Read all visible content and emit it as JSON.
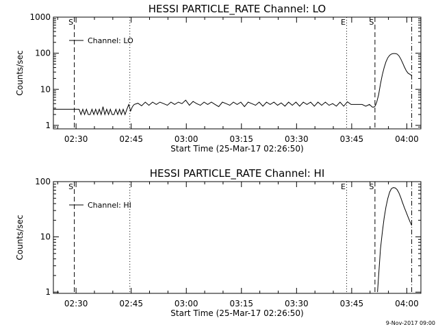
{
  "footer": {
    "date_stamp": "9-Nov-2017 09:00"
  },
  "chart_data": [
    {
      "type": "line",
      "title": "HESSI PARTICLE_RATE Channel: LO",
      "xlabel": "Start Time (25-Mar-17 02:26:50)",
      "ylabel": "Counts/sec",
      "yscale": "log",
      "xlim_min": [
        -3.0,
        97.0
      ],
      "ylim": [
        0.8,
        1000
      ],
      "x_ticks": [
        {
          "min": 3.17,
          "label": "02:30"
        },
        {
          "min": 18.17,
          "label": "02:45"
        },
        {
          "min": 33.17,
          "label": "03:00"
        },
        {
          "min": 48.17,
          "label": "03:15"
        },
        {
          "min": 63.17,
          "label": "03:30"
        },
        {
          "min": 78.17,
          "label": "03:45"
        },
        {
          "min": 93.17,
          "label": "04:00"
        }
      ],
      "y_ticks": [
        {
          "v": 1,
          "label": "1"
        },
        {
          "v": 10,
          "label": "10"
        },
        {
          "v": 100,
          "label": "100"
        },
        {
          "v": 1000,
          "label": "1000"
        }
      ],
      "legend": {
        "label": "Channel: LO",
        "position": "top-left"
      },
      "markers": [
        {
          "min": 2.7,
          "style": "dashed",
          "label": "S"
        },
        {
          "min": 17.8,
          "style": "dotted",
          "label": ""
        },
        {
          "min": 76.8,
          "style": "dotted",
          "label": "E"
        },
        {
          "min": 84.5,
          "style": "dashed",
          "label": "S"
        },
        {
          "min": 94.5,
          "style": "dashdot",
          "label": ""
        }
      ],
      "series": [
        {
          "name": "Channel: LO",
          "x": [
            -3.0,
            4.0,
            4.5,
            5.0,
            5.5,
            6.0,
            6.5,
            7.0,
            7.5,
            8.0,
            8.5,
            9.0,
            9.5,
            10.0,
            10.5,
            11.0,
            11.5,
            12.0,
            12.5,
            13.0,
            13.5,
            14.0,
            14.5,
            15.0,
            15.5,
            16.0,
            16.5,
            17.0,
            17.5,
            18.0,
            18.5,
            19.0,
            20.0,
            21.0,
            22.0,
            23.0,
            24.0,
            25.0,
            26.0,
            27.0,
            28.0,
            29.0,
            30.0,
            31.0,
            32.0,
            33.0,
            34.0,
            35.0,
            36.0,
            37.0,
            38.0,
            39.0,
            40.0,
            41.0,
            42.0,
            43.0,
            44.0,
            45.0,
            46.0,
            47.0,
            48.0,
            49.0,
            50.0,
            51.0,
            52.0,
            53.0,
            54.0,
            55.0,
            56.0,
            57.0,
            58.0,
            59.0,
            60.0,
            61.0,
            62.0,
            63.0,
            64.0,
            65.0,
            66.0,
            67.0,
            68.0,
            69.0,
            70.0,
            71.0,
            72.0,
            73.0,
            74.0,
            75.0,
            76.0,
            77.0,
            78.0,
            79.0,
            80.0,
            81.0,
            82.0,
            83.0,
            83.8,
            84.2,
            84.6,
            85.0,
            85.5,
            86.0,
            86.5,
            87.0,
            87.5,
            88.0,
            88.5,
            89.0,
            89.5,
            90.0,
            90.5,
            91.0,
            91.5,
            92.0,
            92.5,
            93.0,
            93.5,
            94.0,
            94.5
          ],
          "y": [
            2.8,
            2.8,
            2.0,
            2.8,
            2.0,
            2.8,
            2.0,
            2.0,
            2.8,
            2.0,
            2.8,
            2.0,
            2.8,
            2.0,
            3.3,
            2.0,
            2.8,
            2.0,
            2.8,
            2.0,
            2.0,
            2.8,
            2.0,
            2.8,
            2.0,
            2.8,
            2.0,
            2.8,
            3.8,
            2.5,
            3.3,
            3.8,
            4.1,
            3.5,
            4.4,
            3.6,
            4.4,
            3.8,
            4.4,
            4.0,
            3.6,
            4.4,
            3.8,
            4.4,
            4.0,
            5.0,
            3.6,
            4.6,
            4.0,
            3.6,
            4.4,
            3.8,
            4.4,
            3.8,
            3.3,
            4.4,
            4.0,
            3.6,
            4.4,
            3.8,
            4.4,
            3.3,
            4.4,
            4.0,
            3.6,
            4.4,
            3.4,
            4.4,
            3.8,
            4.4,
            3.6,
            4.2,
            3.4,
            4.4,
            3.6,
            4.4,
            3.4,
            4.4,
            3.8,
            4.4,
            3.4,
            4.4,
            3.6,
            4.4,
            3.6,
            4.0,
            3.4,
            4.4,
            3.4,
            4.5,
            3.8,
            3.8,
            3.8,
            3.8,
            3.4,
            3.8,
            3.2,
            3.2,
            3.5,
            4.5,
            7,
            14,
            25,
            40,
            58,
            75,
            88,
            95,
            98,
            98,
            95,
            85,
            70,
            55,
            42,
            33,
            28,
            26,
            24
          ],
          "color": "#000000"
        }
      ]
    },
    {
      "type": "line",
      "title": "HESSI PARTICLE_RATE Channel: HI",
      "xlabel": "Start Time (25-Mar-17 02:26:50)",
      "ylabel": "Counts/sec",
      "yscale": "log",
      "xlim_min": [
        -3.0,
        97.0
      ],
      "ylim": [
        0.95,
        100
      ],
      "x_ticks": [
        {
          "min": 3.17,
          "label": "02:30"
        },
        {
          "min": 18.17,
          "label": "02:45"
        },
        {
          "min": 33.17,
          "label": "03:00"
        },
        {
          "min": 48.17,
          "label": "03:15"
        },
        {
          "min": 63.17,
          "label": "03:30"
        },
        {
          "min": 78.17,
          "label": "03:45"
        },
        {
          "min": 93.17,
          "label": "04:00"
        }
      ],
      "y_ticks": [
        {
          "v": 1,
          "label": "1"
        },
        {
          "v": 10,
          "label": "10"
        },
        {
          "v": 100,
          "label": "100"
        }
      ],
      "legend": {
        "label": "Channel: HI",
        "position": "top-left"
      },
      "markers": [
        {
          "min": 2.7,
          "style": "dashed",
          "label": "S"
        },
        {
          "min": 17.8,
          "style": "dotted",
          "label": ""
        },
        {
          "min": 76.8,
          "style": "dotted",
          "label": "E"
        },
        {
          "min": 84.5,
          "style": "dashed",
          "label": "S"
        },
        {
          "min": 94.5,
          "style": "dashdot",
          "label": ""
        }
      ],
      "series": [
        {
          "name": "Channel: HI",
          "x": [
            85.2,
            85.6,
            86.0,
            86.5,
            87.0,
            87.5,
            88.0,
            88.5,
            89.0,
            89.5,
            90.0,
            90.5,
            91.0,
            91.5,
            92.0,
            92.5,
            93.0,
            93.5,
            94.0,
            94.5
          ],
          "y": [
            1.0,
            2.5,
            6,
            12,
            22,
            35,
            50,
            65,
            75,
            78,
            77,
            72,
            63,
            52,
            42,
            34,
            28,
            23,
            19,
            16
          ],
          "color": "#000000"
        }
      ]
    }
  ]
}
